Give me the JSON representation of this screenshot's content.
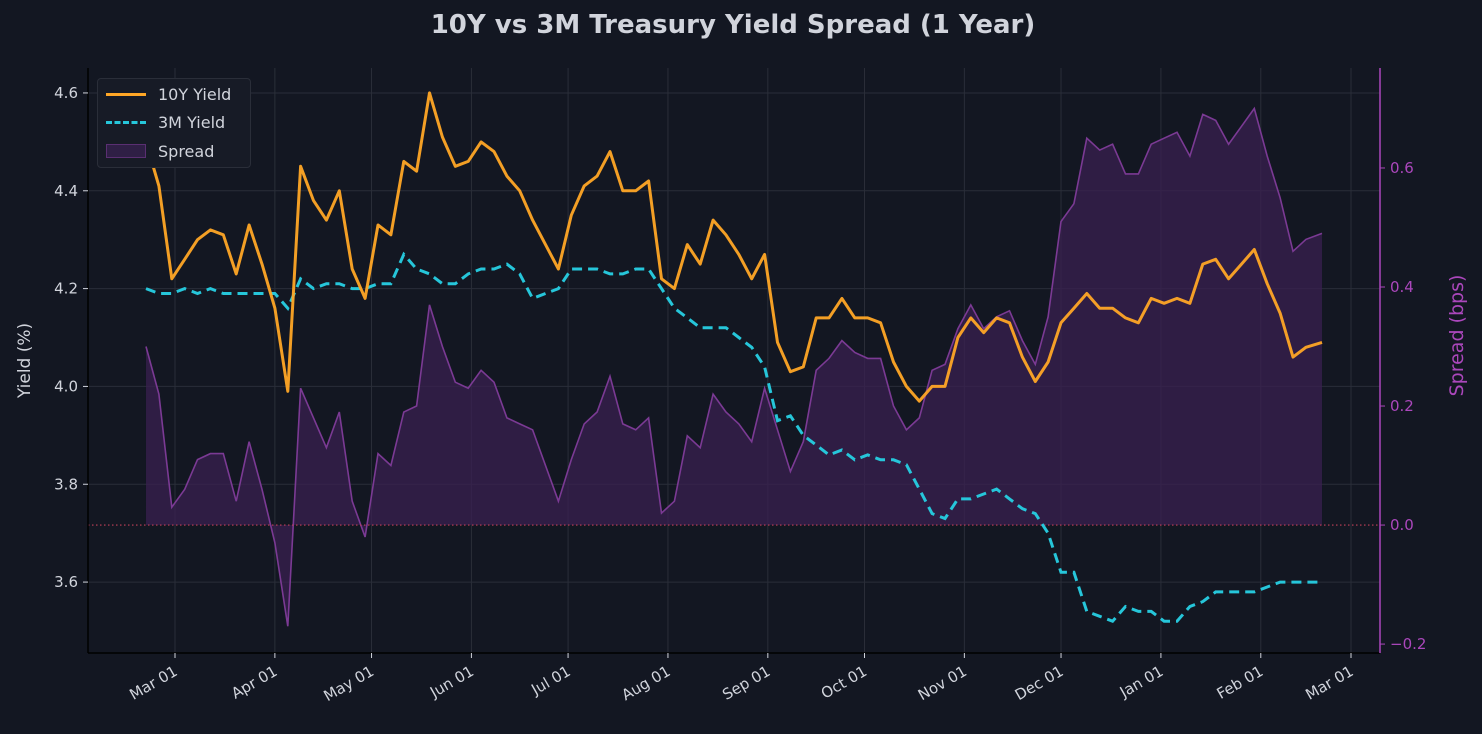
{
  "chart_data": {
    "type": "line",
    "title": "10Y vs 3M Treasury Yield Spread (1 Year)",
    "ylabel": "Yield (%)",
    "ylabel_right": "Spread (bps)",
    "xlim": [
      "2024-02-03",
      "2025-03-10"
    ],
    "ylim": [
      3.455,
      4.651
    ],
    "ylim_right": [
      -0.215,
      0.768
    ],
    "grid": true,
    "legend_position": "top-left",
    "x_ticks": [
      "2024-03-01",
      "2024-04-01",
      "2024-05-01",
      "2024-06-01",
      "2024-07-01",
      "2024-08-01",
      "2024-09-01",
      "2024-10-01",
      "2024-11-01",
      "2024-12-01",
      "2025-01-01",
      "2025-02-01",
      "2025-03-01"
    ],
    "x_tick_labels": [
      "Mar 01",
      "Apr 01",
      "May 01",
      "Jun 01",
      "Jul 01",
      "Aug 01",
      "Sep 01",
      "Oct 01",
      "Nov 01",
      "Dec 01",
      "Jan 01",
      "Feb 01",
      "Mar 01"
    ],
    "y_ticks": [
      "3.6",
      "3.8",
      "4.0",
      "4.2",
      "4.4",
      "4.6"
    ],
    "y_ticks_right": [
      "−0.2",
      "0.0",
      "0.2",
      "0.4",
      "0.6"
    ],
    "x": [
      "2024-02-21",
      "2024-02-25",
      "2024-02-29",
      "2024-03-04",
      "2024-03-08",
      "2024-03-12",
      "2024-03-16",
      "2024-03-20",
      "2024-03-24",
      "2024-03-28",
      "2024-04-01",
      "2024-04-05",
      "2024-04-09",
      "2024-04-13",
      "2024-04-17",
      "2024-04-21",
      "2024-04-25",
      "2024-04-29",
      "2024-05-03",
      "2024-05-07",
      "2024-05-11",
      "2024-05-15",
      "2024-05-19",
      "2024-05-23",
      "2024-05-27",
      "2024-05-31",
      "2024-06-04",
      "2024-06-08",
      "2024-06-12",
      "2024-06-16",
      "2024-06-20",
      "2024-06-24",
      "2024-06-28",
      "2024-07-02",
      "2024-07-06",
      "2024-07-10",
      "2024-07-14",
      "2024-07-18",
      "2024-07-22",
      "2024-07-26",
      "2024-07-30",
      "2024-08-03",
      "2024-08-07",
      "2024-08-11",
      "2024-08-15",
      "2024-08-19",
      "2024-08-23",
      "2024-08-27",
      "2024-08-31",
      "2024-09-04",
      "2024-09-08",
      "2024-09-12",
      "2024-09-16",
      "2024-09-20",
      "2024-09-24",
      "2024-09-28",
      "2024-10-02",
      "2024-10-06",
      "2024-10-10",
      "2024-10-14",
      "2024-10-18",
      "2024-10-22",
      "2024-10-26",
      "2024-10-30",
      "2024-11-03",
      "2024-11-07",
      "2024-11-11",
      "2024-11-15",
      "2024-11-19",
      "2024-11-23",
      "2024-11-27",
      "2024-12-01",
      "2024-12-05",
      "2024-12-09",
      "2024-12-13",
      "2024-12-17",
      "2024-12-21",
      "2024-12-25",
      "2024-12-29",
      "2025-01-02",
      "2025-01-06",
      "2025-01-10",
      "2025-01-14",
      "2025-01-18",
      "2025-01-22",
      "2025-01-26",
      "2025-01-30",
      "2025-02-03",
      "2025-02-07",
      "2025-02-11",
      "2025-02-15",
      "2025-02-20"
    ],
    "series": [
      {
        "name": "10Y Yield",
        "axis": "left",
        "style": "solid",
        "color": "#ffa726",
        "values": [
          4.5,
          4.41,
          4.22,
          4.26,
          4.3,
          4.32,
          4.31,
          4.23,
          4.33,
          4.25,
          4.16,
          3.99,
          4.45,
          4.38,
          4.34,
          4.4,
          4.24,
          4.18,
          4.33,
          4.31,
          4.46,
          4.44,
          4.6,
          4.51,
          4.45,
          4.46,
          4.5,
          4.48,
          4.43,
          4.4,
          4.34,
          4.29,
          4.24,
          4.35,
          4.41,
          4.43,
          4.48,
          4.4,
          4.4,
          4.42,
          4.22,
          4.2,
          4.29,
          4.25,
          4.34,
          4.31,
          4.27,
          4.22,
          4.27,
          4.09,
          4.03,
          4.04,
          4.14,
          4.14,
          4.18,
          4.14,
          4.14,
          4.13,
          4.05,
          4.0,
          3.97,
          4.0,
          4.0,
          4.1,
          4.14,
          4.11,
          4.14,
          4.13,
          4.06,
          4.01,
          4.05,
          4.13,
          4.16,
          4.19,
          4.16,
          4.16,
          4.14,
          4.13,
          4.18,
          4.17,
          4.18,
          4.17,
          4.25,
          4.26,
          4.22,
          4.25,
          4.28,
          4.21,
          4.15,
          4.06,
          4.08,
          4.09
        ]
      },
      {
        "name": "3M Yield",
        "axis": "left",
        "style": "dashed",
        "color": "#26c6da",
        "values": [
          4.2,
          4.19,
          4.19,
          4.2,
          4.19,
          4.2,
          4.19,
          4.19,
          4.19,
          4.19,
          4.19,
          4.16,
          4.22,
          4.2,
          4.21,
          4.21,
          4.2,
          4.2,
          4.21,
          4.21,
          4.27,
          4.24,
          4.23,
          4.21,
          4.21,
          4.23,
          4.24,
          4.24,
          4.25,
          4.23,
          4.18,
          4.19,
          4.2,
          4.24,
          4.24,
          4.24,
          4.23,
          4.23,
          4.24,
          4.24,
          4.2,
          4.16,
          4.14,
          4.12,
          4.12,
          4.12,
          4.1,
          4.08,
          4.04,
          3.93,
          3.94,
          3.9,
          3.88,
          3.86,
          3.87,
          3.85,
          3.86,
          3.85,
          3.85,
          3.84,
          3.79,
          3.74,
          3.73,
          3.77,
          3.77,
          3.78,
          3.79,
          3.77,
          3.75,
          3.74,
          3.7,
          3.62,
          3.62,
          3.54,
          3.53,
          3.52,
          3.55,
          3.54,
          3.54,
          3.52,
          3.52,
          3.55,
          3.56,
          3.58,
          3.58,
          3.58,
          3.58,
          3.59,
          3.6,
          3.6,
          3.6,
          3.6
        ]
      },
      {
        "name": "Spread",
        "axis": "right",
        "style": "area",
        "color": "#7b3a94",
        "values": [
          0.3,
          0.22,
          0.03,
          0.06,
          0.11,
          0.12,
          0.12,
          0.04,
          0.14,
          0.06,
          -0.03,
          -0.17,
          0.23,
          0.18,
          0.13,
          0.19,
          0.04,
          -0.02,
          0.12,
          0.1,
          0.19,
          0.2,
          0.37,
          0.3,
          0.24,
          0.23,
          0.26,
          0.24,
          0.18,
          0.17,
          0.16,
          0.1,
          0.04,
          0.11,
          0.17,
          0.19,
          0.25,
          0.17,
          0.16,
          0.18,
          0.02,
          0.04,
          0.15,
          0.13,
          0.22,
          0.19,
          0.17,
          0.14,
          0.23,
          0.16,
          0.09,
          0.14,
          0.26,
          0.28,
          0.31,
          0.29,
          0.28,
          0.28,
          0.2,
          0.16,
          0.18,
          0.26,
          0.27,
          0.33,
          0.37,
          0.33,
          0.35,
          0.36,
          0.31,
          0.27,
          0.35,
          0.51,
          0.54,
          0.65,
          0.63,
          0.64,
          0.59,
          0.59,
          0.64,
          0.65,
          0.66,
          0.62,
          0.69,
          0.68,
          0.64,
          0.67,
          0.7,
          0.62,
          0.55,
          0.46,
          0.48,
          0.49
        ]
      }
    ],
    "reference_line": {
      "axis": "right",
      "value": 0.0,
      "style": "dotted",
      "color": "#c2405a"
    }
  },
  "colors": {
    "background": "#131722",
    "grid": "#2a2e39",
    "text": "#d1d4dc",
    "right_axis": "#ab47bc"
  }
}
